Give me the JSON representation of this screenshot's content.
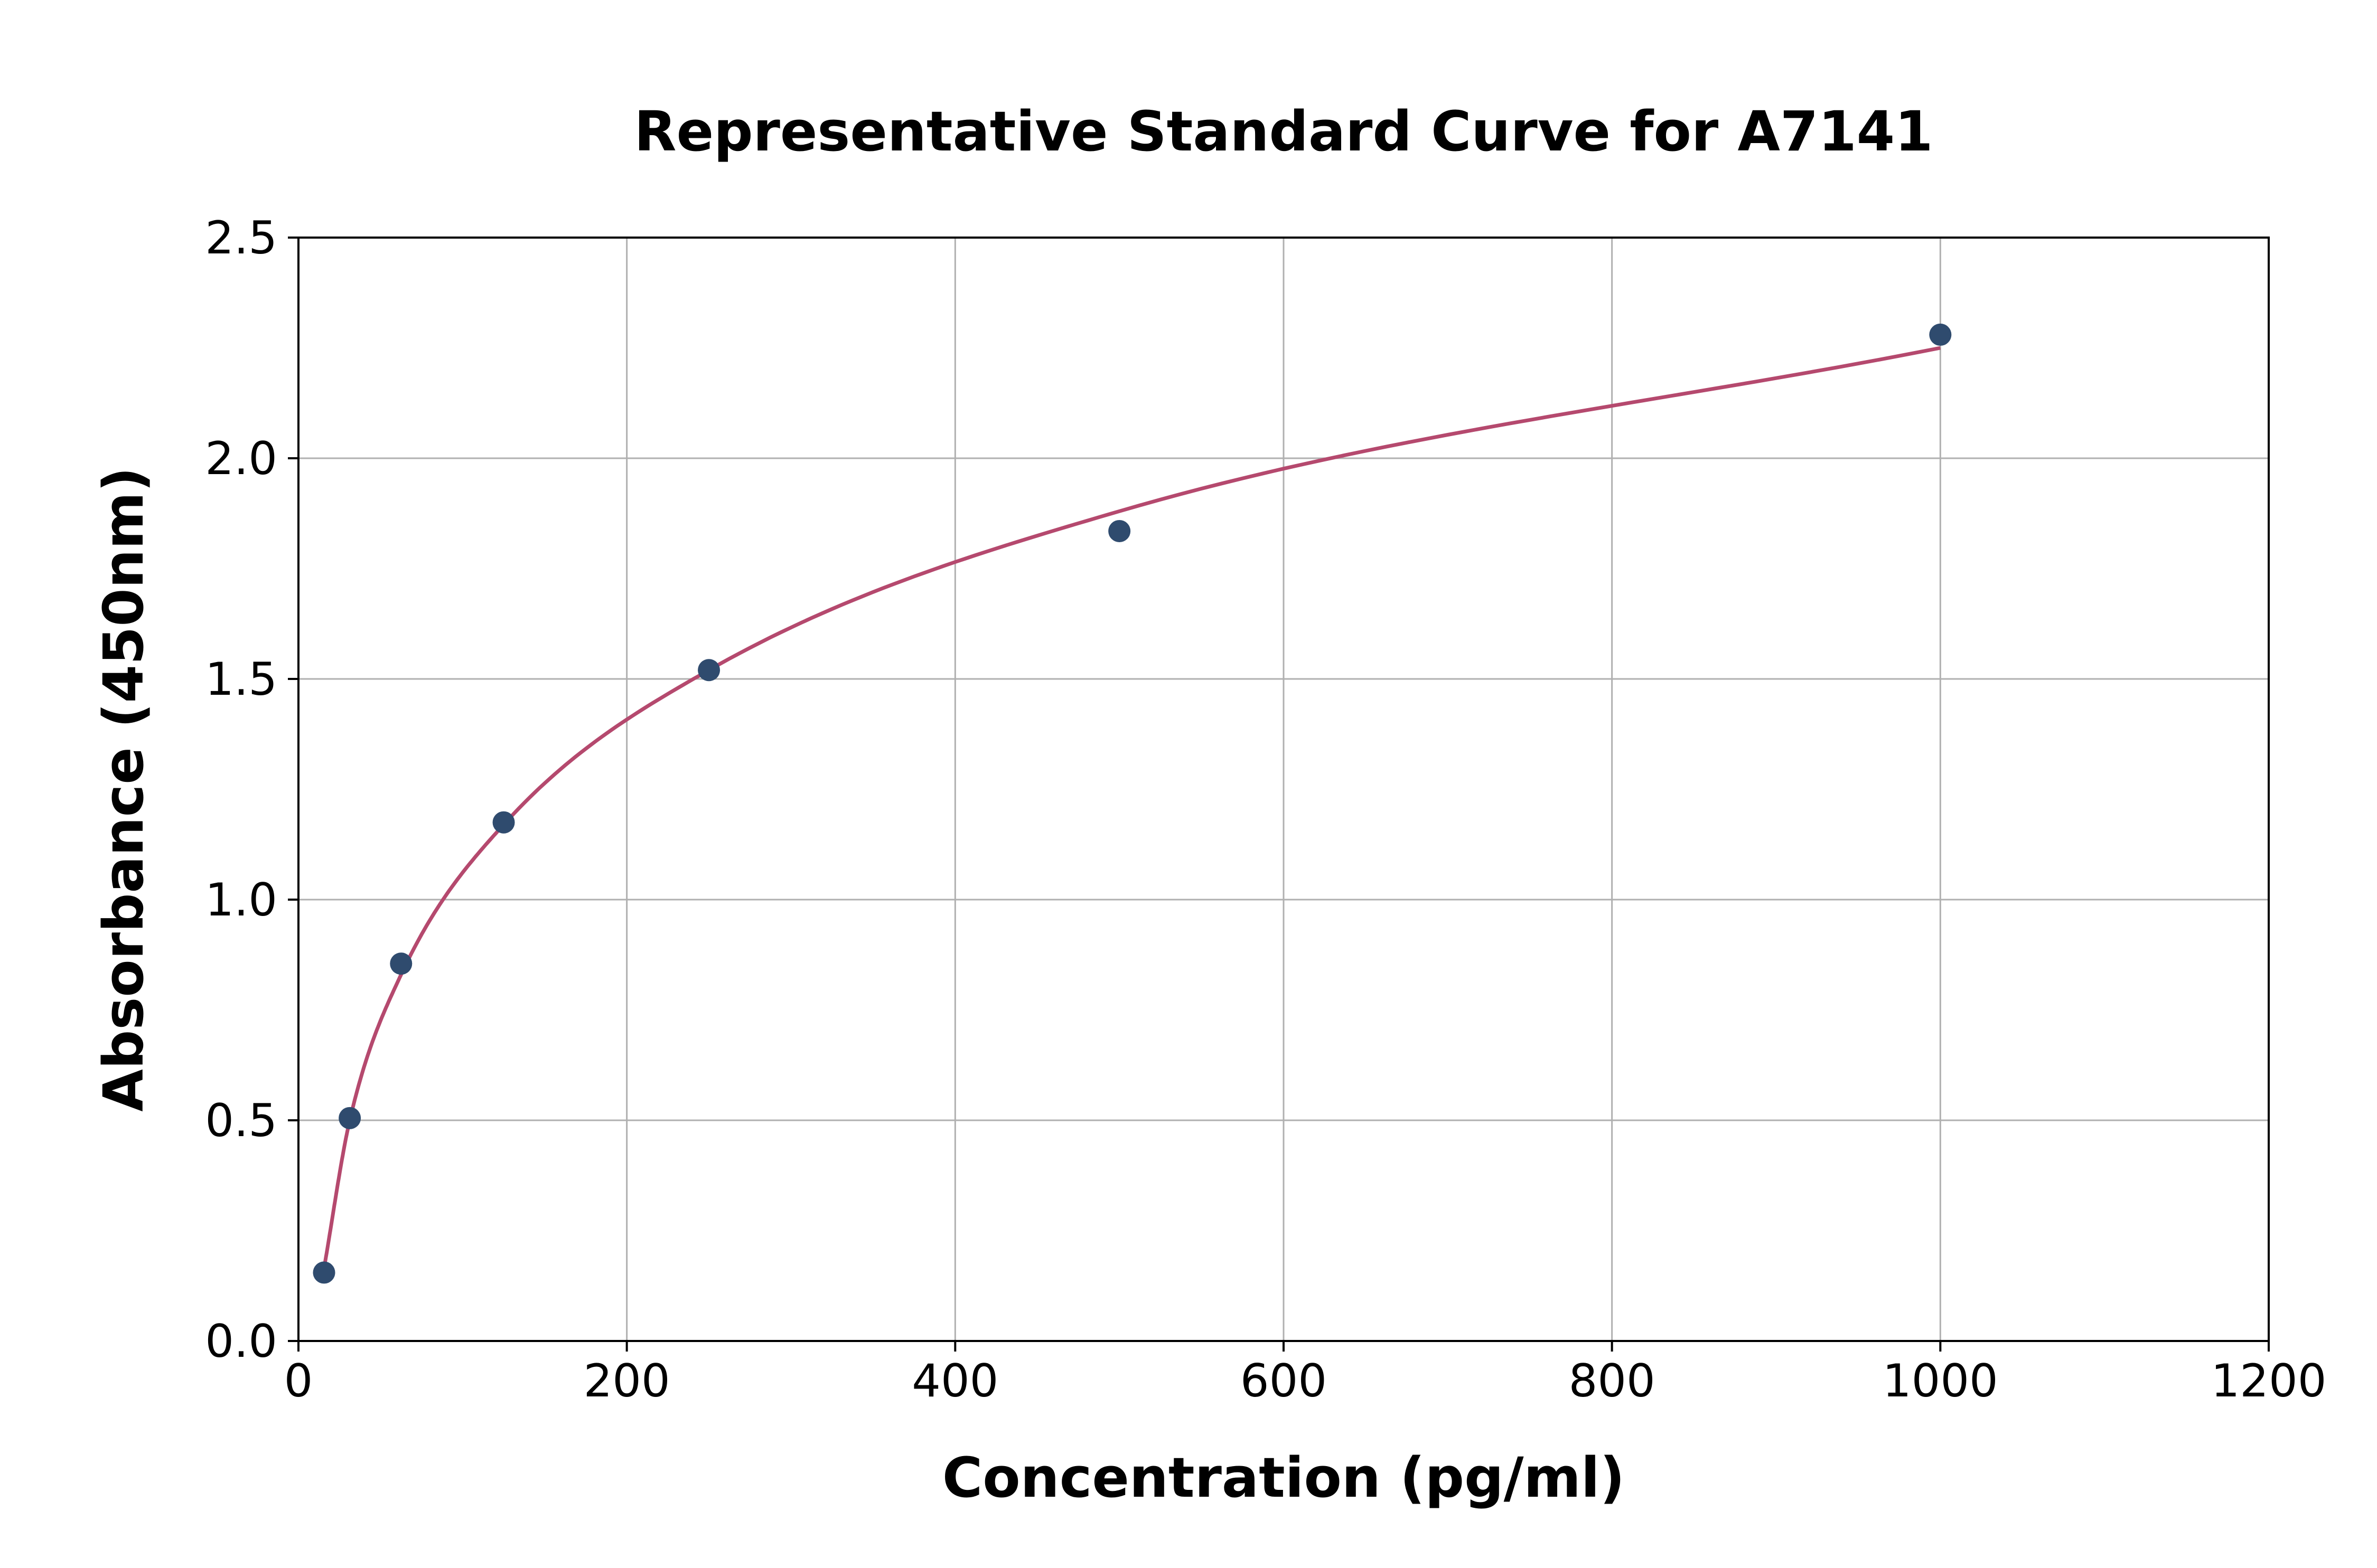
{
  "chart_data": {
    "type": "scatter",
    "title": "Representative Standard Curve for A7141",
    "xlabel": "Concentration (pg/ml)",
    "ylabel": "Absorbance (450nm)",
    "xlim": [
      0,
      1200
    ],
    "ylim": [
      0,
      2.5
    ],
    "x_ticks": [
      "0",
      "200",
      "400",
      "600",
      "800",
      "1000",
      "1200"
    ],
    "y_ticks": [
      "0.0",
      "0.5",
      "1.0",
      "1.5",
      "2.0",
      "2.5"
    ],
    "grid": true,
    "series": [
      {
        "kind": "points",
        "color": "#2f4b6e",
        "x": [
          15.6,
          31.25,
          62.5,
          125,
          250,
          500,
          1000
        ],
        "y": [
          0.155,
          0.505,
          0.855,
          1.175,
          1.52,
          1.835,
          2.28
        ]
      },
      {
        "kind": "fit-curve",
        "color": "#b5496e",
        "x": [
          15.6,
          31.25,
          62.5,
          125,
          250,
          500,
          1000
        ],
        "y": [
          0.165,
          0.5,
          0.83,
          1.17,
          1.52,
          1.88,
          2.25
        ]
      }
    ]
  }
}
